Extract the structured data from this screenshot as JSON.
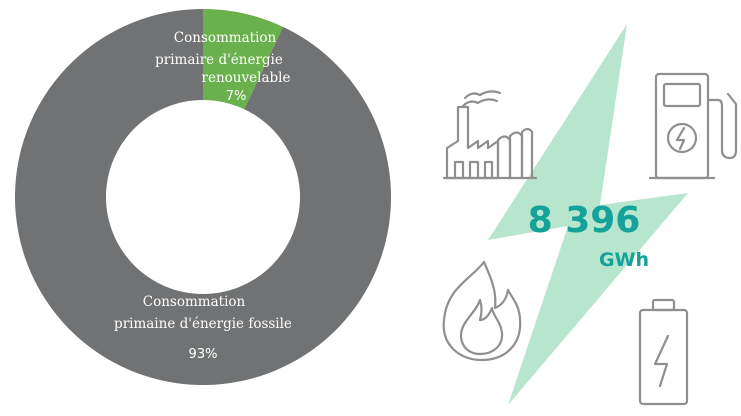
{
  "chart_data": {
    "type": "pie",
    "style": "donut",
    "slices": [
      {
        "label_lines": [
          "Consommation",
          "primaire d'énergie",
          "renouvelable"
        ],
        "value": 7,
        "value_label": "7%",
        "color": "#6ab04c"
      },
      {
        "label_lines": [
          "Consommation",
          "primaine d'énergie fossile"
        ],
        "value": 93,
        "value_label": "93%",
        "color": "#717273"
      }
    ]
  },
  "total": {
    "value": "8 396",
    "unit": "GWh",
    "color": "#14a29a"
  },
  "colors": {
    "bolt": "#b7e5cd",
    "icon_stroke": "#8f8f8f"
  },
  "icons": [
    "factory-icon",
    "fuel-pump-icon",
    "flame-icon",
    "battery-icon"
  ]
}
